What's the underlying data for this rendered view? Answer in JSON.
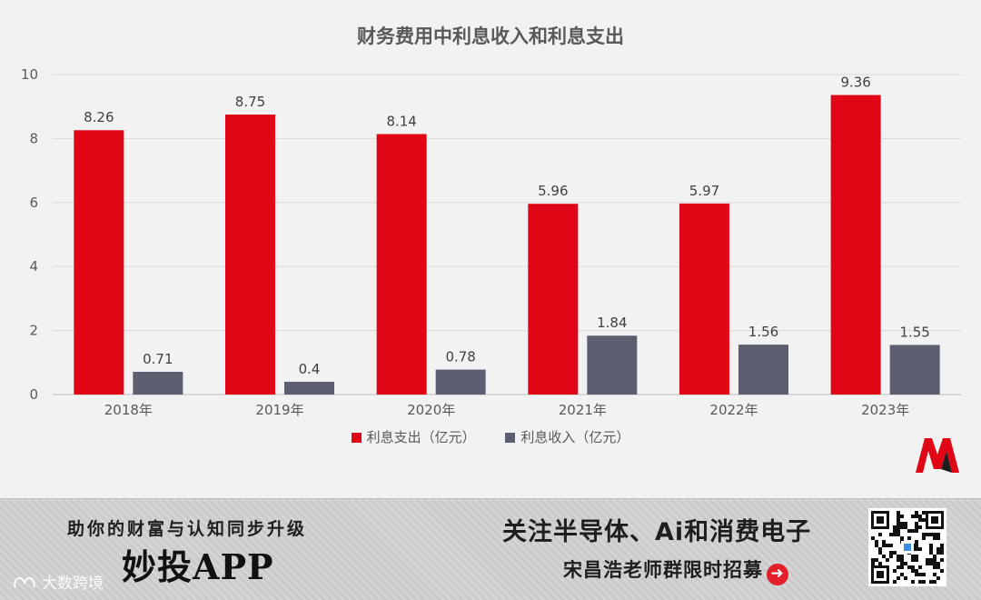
{
  "chart_data": {
    "type": "bar",
    "title": "财务费用中利息收入和利息支出",
    "categories": [
      "2018年",
      "2019年",
      "2020年",
      "2021年",
      "2022年",
      "2023年"
    ],
    "series": [
      {
        "name": "利息支出（亿元）",
        "color": "#e10615",
        "values": [
          8.26,
          8.75,
          8.14,
          5.96,
          5.97,
          9.36
        ],
        "labels": [
          "8.26",
          "8.75",
          "8.14",
          "5.96",
          "5.97",
          "9.36"
        ]
      },
      {
        "name": "利息收入（亿元）",
        "color": "#5b5f70",
        "values": [
          0.71,
          0.4,
          0.78,
          1.84,
          1.56,
          1.55
        ],
        "labels": [
          "0.71",
          "0.4",
          "0.78",
          "1.84",
          "1.56",
          "1.55"
        ]
      }
    ],
    "yticks": [
      "0",
      "2",
      "4",
      "6",
      "8",
      "10"
    ],
    "ylim": [
      0,
      10
    ],
    "grid": true,
    "legend": "bottom"
  },
  "banner": {
    "slogan": "助你的财富与认知同步升级",
    "app_name": "妙投APP",
    "headline": "关注半导体、Ai和消费电子",
    "recruit": "宋昌浩老师群限时招募",
    "watermark": "大数跨境",
    "arrow_icon": "arrow-right-circle-icon",
    "qr_icon": "qr-code-icon",
    "brand_logo": "m-logo-icon"
  }
}
